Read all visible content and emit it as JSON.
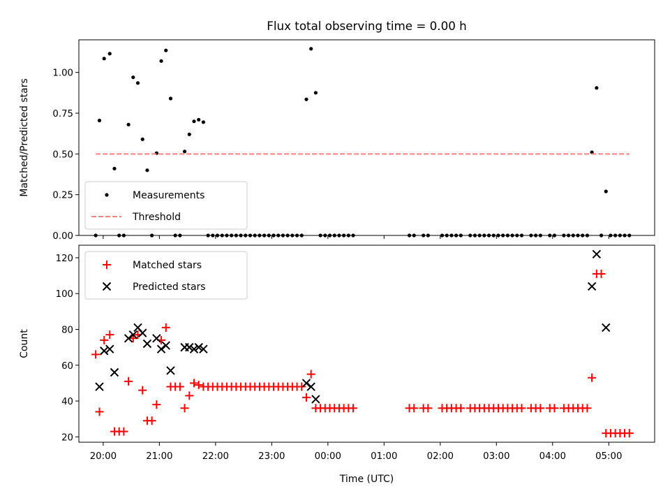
{
  "chart_data": [
    {
      "type": "scatter",
      "title": "Flux total observing time = 0.00 h",
      "xlabel": "",
      "ylabel": "Matched/Predicted stars",
      "ylim": [
        0,
        1.2
      ],
      "xlim": [
        "19:34",
        "05:49"
      ],
      "yticks": [
        "0.00",
        "0.25",
        "0.50",
        "0.75",
        "1.00"
      ],
      "legend_position": "lower-left",
      "series": [
        {
          "name": "Measurements",
          "marker": "dot",
          "color": "#000000",
          "points": [
            [
              "19:52",
              0.0
            ],
            [
              "19:56",
              0.705
            ],
            [
              "20:01",
              1.085
            ],
            [
              "20:07",
              1.115
            ],
            [
              "20:12",
              0.41
            ],
            [
              "20:17",
              0.0
            ],
            [
              "20:22",
              0.0
            ],
            [
              "20:27",
              0.68
            ],
            [
              "20:32",
              0.97
            ],
            [
              "20:37",
              0.935
            ],
            [
              "20:42",
              0.59
            ],
            [
              "20:47",
              0.4
            ],
            [
              "20:52",
              0.0
            ],
            [
              "20:57",
              0.505
            ],
            [
              "21:02",
              1.07
            ],
            [
              "21:07",
              1.135
            ],
            [
              "21:12",
              0.84
            ],
            [
              "21:17",
              0.0
            ],
            [
              "21:22",
              0.0
            ],
            [
              "21:27",
              0.515
            ],
            [
              "21:32",
              0.62
            ],
            [
              "21:37",
              0.7
            ],
            [
              "21:42",
              0.71
            ],
            [
              "21:47",
              0.695
            ],
            [
              "21:52",
              0.0
            ],
            [
              "21:57",
              0.0
            ],
            [
              "22:02",
              0.0
            ],
            [
              "22:07",
              0.0
            ],
            [
              "22:12",
              0.0
            ],
            [
              "22:17",
              0.0
            ],
            [
              "22:22",
              0.0
            ],
            [
              "22:27",
              0.0
            ],
            [
              "22:32",
              0.0
            ],
            [
              "22:37",
              0.0
            ],
            [
              "22:42",
              0.0
            ],
            [
              "22:47",
              0.0
            ],
            [
              "22:52",
              0.0
            ],
            [
              "22:57",
              0.0
            ],
            [
              "23:02",
              0.0
            ],
            [
              "23:07",
              0.0
            ],
            [
              "23:12",
              0.0
            ],
            [
              "23:17",
              0.0
            ],
            [
              "23:22",
              0.0
            ],
            [
              "23:27",
              0.0
            ],
            [
              "23:32",
              0.0
            ],
            [
              "23:37",
              0.835
            ],
            [
              "23:42",
              1.145
            ],
            [
              "23:47",
              0.875
            ],
            [
              "23:52",
              0.0
            ],
            [
              "23:57",
              0.0
            ],
            [
              "00:02",
              0.0
            ],
            [
              "00:07",
              0.0
            ],
            [
              "00:12",
              0.0
            ],
            [
              "00:17",
              0.0
            ],
            [
              "00:22",
              0.0
            ],
            [
              "00:27",
              0.0
            ],
            [
              "01:27",
              0.0
            ],
            [
              "01:32",
              0.0
            ],
            [
              "01:42",
              0.0
            ],
            [
              "01:47",
              0.0
            ],
            [
              "02:02",
              0.0
            ],
            [
              "02:07",
              0.0
            ],
            [
              "02:12",
              0.0
            ],
            [
              "02:17",
              0.0
            ],
            [
              "02:22",
              0.0
            ],
            [
              "02:32",
              0.0
            ],
            [
              "02:37",
              0.0
            ],
            [
              "02:42",
              0.0
            ],
            [
              "02:47",
              0.0
            ],
            [
              "02:52",
              0.0
            ],
            [
              "02:57",
              0.0
            ],
            [
              "03:02",
              0.0
            ],
            [
              "03:07",
              0.0
            ],
            [
              "03:12",
              0.0
            ],
            [
              "03:17",
              0.0
            ],
            [
              "03:22",
              0.0
            ],
            [
              "03:27",
              0.0
            ],
            [
              "03:37",
              0.0
            ],
            [
              "03:42",
              0.0
            ],
            [
              "03:47",
              0.0
            ],
            [
              "03:57",
              0.0
            ],
            [
              "04:02",
              0.0
            ],
            [
              "04:12",
              0.0
            ],
            [
              "04:17",
              0.0
            ],
            [
              "04:22",
              0.0
            ],
            [
              "04:27",
              0.0
            ],
            [
              "04:32",
              0.0
            ],
            [
              "04:37",
              0.0
            ],
            [
              "04:42",
              0.51
            ],
            [
              "04:47",
              0.905
            ],
            [
              "04:52",
              0.0
            ],
            [
              "04:57",
              0.27
            ],
            [
              "05:02",
              0.0
            ],
            [
              "05:07",
              0.0
            ],
            [
              "05:12",
              0.0
            ],
            [
              "05:17",
              0.0
            ],
            [
              "05:22",
              0.0
            ]
          ]
        },
        {
          "name": "Threshold",
          "style": "dashed",
          "color": "#ff8080",
          "points": [
            [
              "19:52",
              0.5
            ],
            [
              "05:22",
              0.5
            ]
          ]
        }
      ]
    },
    {
      "type": "scatter",
      "title": "",
      "xlabel": "Time (UTC)",
      "ylabel": "Count",
      "ylim": [
        17,
        127
      ],
      "xlim": [
        "19:34",
        "05:49"
      ],
      "xticks": [
        "20:00",
        "21:00",
        "22:00",
        "23:00",
        "00:00",
        "01:00",
        "02:00",
        "03:00",
        "04:00",
        "05:00"
      ],
      "yticks": [
        "20",
        "40",
        "60",
        "80",
        "100",
        "120"
      ],
      "legend_position": "upper-left",
      "series": [
        {
          "name": "Matched stars",
          "marker": "plus",
          "color": "#ff0000",
          "points": [
            [
              "19:52",
              66
            ],
            [
              "19:56",
              34
            ],
            [
              "20:01",
              74
            ],
            [
              "20:07",
              77
            ],
            [
              "20:12",
              23
            ],
            [
              "20:17",
              23
            ],
            [
              "20:22",
              23
            ],
            [
              "20:27",
              51
            ],
            [
              "20:32",
              75
            ],
            [
              "20:37",
              77
            ],
            [
              "20:42",
              46
            ],
            [
              "20:47",
              29
            ],
            [
              "20:52",
              29
            ],
            [
              "20:57",
              38
            ],
            [
              "21:02",
              74
            ],
            [
              "21:07",
              81
            ],
            [
              "21:12",
              48
            ],
            [
              "21:17",
              48
            ],
            [
              "21:22",
              48
            ],
            [
              "21:27",
              36
            ],
            [
              "21:32",
              43
            ],
            [
              "21:37",
              50
            ],
            [
              "21:42",
              49
            ],
            [
              "21:47",
              48
            ],
            [
              "21:52",
              48
            ],
            [
              "21:57",
              48
            ],
            [
              "22:02",
              48
            ],
            [
              "22:07",
              48
            ],
            [
              "22:12",
              48
            ],
            [
              "22:17",
              48
            ],
            [
              "22:22",
              48
            ],
            [
              "22:27",
              48
            ],
            [
              "22:32",
              48
            ],
            [
              "22:37",
              48
            ],
            [
              "22:42",
              48
            ],
            [
              "22:47",
              48
            ],
            [
              "22:52",
              48
            ],
            [
              "22:57",
              48
            ],
            [
              "23:02",
              48
            ],
            [
              "23:07",
              48
            ],
            [
              "23:12",
              48
            ],
            [
              "23:17",
              48
            ],
            [
              "23:22",
              48
            ],
            [
              "23:27",
              48
            ],
            [
              "23:32",
              48
            ],
            [
              "23:37",
              42
            ],
            [
              "23:42",
              55
            ],
            [
              "23:47",
              36
            ],
            [
              "23:52",
              36
            ],
            [
              "23:57",
              36
            ],
            [
              "00:02",
              36
            ],
            [
              "00:07",
              36
            ],
            [
              "00:12",
              36
            ],
            [
              "00:17",
              36
            ],
            [
              "00:22",
              36
            ],
            [
              "00:27",
              36
            ],
            [
              "01:27",
              36
            ],
            [
              "01:32",
              36
            ],
            [
              "01:42",
              36
            ],
            [
              "01:47",
              36
            ],
            [
              "02:02",
              36
            ],
            [
              "02:07",
              36
            ],
            [
              "02:12",
              36
            ],
            [
              "02:17",
              36
            ],
            [
              "02:22",
              36
            ],
            [
              "02:32",
              36
            ],
            [
              "02:37",
              36
            ],
            [
              "02:42",
              36
            ],
            [
              "02:47",
              36
            ],
            [
              "02:52",
              36
            ],
            [
              "02:57",
              36
            ],
            [
              "03:02",
              36
            ],
            [
              "03:07",
              36
            ],
            [
              "03:12",
              36
            ],
            [
              "03:17",
              36
            ],
            [
              "03:22",
              36
            ],
            [
              "03:27",
              36
            ],
            [
              "03:37",
              36
            ],
            [
              "03:42",
              36
            ],
            [
              "03:47",
              36
            ],
            [
              "03:57",
              36
            ],
            [
              "04:02",
              36
            ],
            [
              "04:12",
              36
            ],
            [
              "04:17",
              36
            ],
            [
              "04:22",
              36
            ],
            [
              "04:27",
              36
            ],
            [
              "04:32",
              36
            ],
            [
              "04:37",
              36
            ],
            [
              "04:42",
              53
            ],
            [
              "04:47",
              111
            ],
            [
              "04:52",
              111
            ],
            [
              "04:57",
              22
            ],
            [
              "05:02",
              22
            ],
            [
              "05:07",
              22
            ],
            [
              "05:12",
              22
            ],
            [
              "05:17",
              22
            ],
            [
              "05:22",
              22
            ]
          ]
        },
        {
          "name": "Predicted stars",
          "marker": "x",
          "color": "#000000",
          "points": [
            [
              "19:56",
              48
            ],
            [
              "20:01",
              68
            ],
            [
              "20:07",
              69
            ],
            [
              "20:12",
              56
            ],
            [
              "20:27",
              75
            ],
            [
              "20:32",
              77
            ],
            [
              "20:37",
              81
            ],
            [
              "20:42",
              78
            ],
            [
              "20:47",
              72
            ],
            [
              "20:57",
              75
            ],
            [
              "21:02",
              69
            ],
            [
              "21:07",
              71
            ],
            [
              "21:12",
              57
            ],
            [
              "21:27",
              70
            ],
            [
              "21:32",
              70
            ],
            [
              "21:37",
              69
            ],
            [
              "21:42",
              70
            ],
            [
              "21:47",
              69
            ],
            [
              "23:37",
              50
            ],
            [
              "23:42",
              48
            ],
            [
              "23:47",
              41
            ],
            [
              "04:42",
              104
            ],
            [
              "04:47",
              122
            ],
            [
              "04:57",
              81
            ]
          ]
        }
      ]
    }
  ]
}
